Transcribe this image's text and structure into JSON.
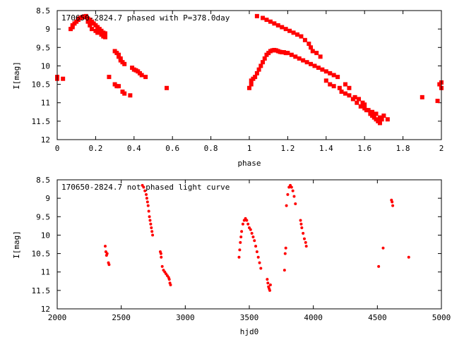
{
  "chart_data": [
    {
      "type": "scatter",
      "title": "170650-2824.7 phased with P=378.0day",
      "xlabel": "phase",
      "ylabel": "I[mag]",
      "xlim": [
        0,
        2
      ],
      "ylim": [
        8.5,
        12
      ],
      "y_inverted": true,
      "grid": false,
      "marker": "filled square",
      "x_ticks": [
        "0",
        "0.2",
        "0.4",
        "0.6",
        "0.8",
        "1",
        "1.2",
        "1.4",
        "1.6",
        "1.8",
        "2"
      ],
      "y_ticks": [
        "8.5",
        "9",
        "9.5",
        "10",
        "10.5",
        "11",
        "11.5",
        "12"
      ],
      "series_color": "#ff0000",
      "points": [
        [
          0.0,
          10.3
        ],
        [
          0.0,
          10.35
        ],
        [
          0.03,
          10.35
        ],
        [
          0.07,
          9.0
        ],
        [
          0.08,
          8.95
        ],
        [
          0.08,
          8.9
        ],
        [
          0.09,
          8.85
        ],
        [
          0.1,
          8.8
        ],
        [
          0.11,
          8.75
        ],
        [
          0.11,
          8.72
        ],
        [
          0.12,
          8.7
        ],
        [
          0.13,
          8.68
        ],
        [
          0.14,
          8.66
        ],
        [
          0.15,
          8.65
        ],
        [
          0.15,
          8.68
        ],
        [
          0.16,
          8.72
        ],
        [
          0.16,
          8.8
        ],
        [
          0.17,
          8.75
        ],
        [
          0.18,
          8.8
        ],
        [
          0.19,
          8.85
        ],
        [
          0.2,
          8.9
        ],
        [
          0.21,
          8.95
        ],
        [
          0.22,
          9.0
        ],
        [
          0.23,
          9.05
        ],
        [
          0.24,
          9.1
        ],
        [
          0.25,
          9.12
        ],
        [
          0.17,
          8.9
        ],
        [
          0.18,
          9.0
        ],
        [
          0.2,
          9.05
        ],
        [
          0.21,
          9.1
        ],
        [
          0.23,
          9.15
        ],
        [
          0.24,
          9.2
        ],
        [
          0.25,
          9.22
        ],
        [
          0.27,
          10.3
        ],
        [
          0.3,
          9.6
        ],
        [
          0.31,
          9.65
        ],
        [
          0.32,
          9.7
        ],
        [
          0.32,
          9.75
        ],
        [
          0.33,
          9.8
        ],
        [
          0.33,
          9.85
        ],
        [
          0.34,
          9.9
        ],
        [
          0.35,
          9.95
        ],
        [
          0.3,
          10.5
        ],
        [
          0.31,
          10.55
        ],
        [
          0.32,
          10.55
        ],
        [
          0.34,
          10.7
        ],
        [
          0.35,
          10.75
        ],
        [
          0.38,
          10.8
        ],
        [
          0.39,
          10.05
        ],
        [
          0.4,
          10.1
        ],
        [
          0.41,
          10.12
        ],
        [
          0.42,
          10.15
        ],
        [
          0.43,
          10.2
        ],
        [
          0.44,
          10.25
        ],
        [
          0.46,
          10.3
        ],
        [
          0.57,
          10.6
        ],
        [
          1.0,
          10.6
        ],
        [
          1.01,
          10.5
        ],
        [
          1.01,
          10.4
        ],
        [
          1.02,
          10.35
        ],
        [
          1.03,
          10.3
        ],
        [
          1.04,
          10.2
        ],
        [
          1.05,
          10.1
        ],
        [
          1.06,
          10.0
        ],
        [
          1.07,
          9.9
        ],
        [
          1.08,
          9.8
        ],
        [
          1.09,
          9.7
        ],
        [
          1.1,
          9.65
        ],
        [
          1.11,
          9.6
        ],
        [
          1.12,
          9.58
        ],
        [
          1.13,
          9.57
        ],
        [
          1.14,
          9.58
        ],
        [
          1.15,
          9.6
        ],
        [
          1.16,
          9.62
        ],
        [
          1.17,
          9.63
        ],
        [
          1.18,
          9.63
        ],
        [
          1.19,
          9.65
        ],
        [
          1.04,
          8.65
        ],
        [
          1.07,
          8.7
        ],
        [
          1.09,
          8.75
        ],
        [
          1.11,
          8.8
        ],
        [
          1.13,
          8.85
        ],
        [
          1.15,
          8.9
        ],
        [
          1.17,
          8.95
        ],
        [
          1.19,
          9.0
        ],
        [
          1.21,
          9.05
        ],
        [
          1.23,
          9.1
        ],
        [
          1.25,
          9.15
        ],
        [
          1.27,
          9.2
        ],
        [
          1.29,
          9.3
        ],
        [
          1.31,
          9.4
        ],
        [
          1.32,
          9.5
        ],
        [
          1.33,
          9.6
        ],
        [
          1.35,
          9.65
        ],
        [
          1.37,
          9.75
        ],
        [
          1.2,
          9.65
        ],
        [
          1.22,
          9.7
        ],
        [
          1.24,
          9.75
        ],
        [
          1.26,
          9.8
        ],
        [
          1.28,
          9.85
        ],
        [
          1.3,
          9.9
        ],
        [
          1.32,
          9.95
        ],
        [
          1.34,
          10.0
        ],
        [
          1.36,
          10.05
        ],
        [
          1.38,
          10.1
        ],
        [
          1.4,
          10.15
        ],
        [
          1.42,
          10.2
        ],
        [
          1.44,
          10.25
        ],
        [
          1.46,
          10.3
        ],
        [
          1.4,
          10.4
        ],
        [
          1.42,
          10.5
        ],
        [
          1.44,
          10.55
        ],
        [
          1.47,
          10.6
        ],
        [
          1.48,
          10.7
        ],
        [
          1.5,
          10.75
        ],
        [
          1.52,
          10.8
        ],
        [
          1.54,
          10.9
        ],
        [
          1.56,
          11.0
        ],
        [
          1.58,
          11.1
        ],
        [
          1.6,
          11.15
        ],
        [
          1.62,
          11.2
        ],
        [
          1.64,
          11.25
        ],
        [
          1.66,
          11.3
        ],
        [
          1.68,
          11.4
        ],
        [
          1.5,
          10.5
        ],
        [
          1.52,
          10.6
        ],
        [
          1.55,
          10.85
        ],
        [
          1.57,
          10.9
        ],
        [
          1.59,
          11.0
        ],
        [
          1.6,
          11.05
        ],
        [
          1.61,
          11.2
        ],
        [
          1.63,
          11.3
        ],
        [
          1.64,
          11.35
        ],
        [
          1.65,
          11.4
        ],
        [
          1.66,
          11.45
        ],
        [
          1.67,
          11.5
        ],
        [
          1.68,
          11.55
        ],
        [
          1.69,
          11.45
        ],
        [
          1.7,
          11.35
        ],
        [
          1.72,
          11.45
        ],
        [
          1.9,
          10.85
        ],
        [
          1.98,
          10.95
        ],
        [
          1.99,
          10.5
        ],
        [
          2.0,
          10.45
        ],
        [
          2.0,
          10.6
        ]
      ]
    },
    {
      "type": "scatter",
      "title": "170650-2824.7 not phased light curve",
      "xlabel": "hjd0",
      "ylabel": "I[mag]",
      "xlim": [
        2000,
        5000
      ],
      "ylim": [
        8.5,
        12
      ],
      "y_inverted": true,
      "grid": false,
      "marker": "small dot",
      "x_ticks": [
        "2000",
        "2500",
        "3000",
        "3500",
        "4000",
        "4500",
        "5000"
      ],
      "y_ticks": [
        "8.5",
        "9",
        "9.5",
        "10",
        "10.5",
        "11",
        "11.5",
        "12"
      ],
      "series_color": "#ff0000",
      "points": [
        [
          2375,
          10.3
        ],
        [
          2380,
          10.45
        ],
        [
          2385,
          10.55
        ],
        [
          2390,
          10.5
        ],
        [
          2400,
          10.75
        ],
        [
          2405,
          10.8
        ],
        [
          2665,
          8.65
        ],
        [
          2675,
          8.7
        ],
        [
          2685,
          8.8
        ],
        [
          2695,
          8.9
        ],
        [
          2700,
          9.0
        ],
        [
          2705,
          9.1
        ],
        [
          2710,
          9.2
        ],
        [
          2715,
          9.35
        ],
        [
          2720,
          9.5
        ],
        [
          2725,
          9.6
        ],
        [
          2730,
          9.7
        ],
        [
          2735,
          9.8
        ],
        [
          2740,
          9.9
        ],
        [
          2745,
          10.0
        ],
        [
          2805,
          10.45
        ],
        [
          2810,
          10.5
        ],
        [
          2812,
          10.6
        ],
        [
          2820,
          10.85
        ],
        [
          2830,
          10.95
        ],
        [
          2840,
          11.0
        ],
        [
          2850,
          11.05
        ],
        [
          2860,
          11.1
        ],
        [
          2870,
          11.15
        ],
        [
          2875,
          11.2
        ],
        [
          2880,
          11.3
        ],
        [
          2885,
          11.35
        ],
        [
          3420,
          10.6
        ],
        [
          3425,
          10.4
        ],
        [
          3430,
          10.2
        ],
        [
          3435,
          10.05
        ],
        [
          3440,
          9.9
        ],
        [
          3450,
          9.7
        ],
        [
          3460,
          9.6
        ],
        [
          3470,
          9.55
        ],
        [
          3480,
          9.6
        ],
        [
          3490,
          9.7
        ],
        [
          3500,
          9.8
        ],
        [
          3510,
          9.85
        ],
        [
          3520,
          9.95
        ],
        [
          3530,
          10.05
        ],
        [
          3540,
          10.15
        ],
        [
          3550,
          10.3
        ],
        [
          3560,
          10.45
        ],
        [
          3570,
          10.6
        ],
        [
          3580,
          10.75
        ],
        [
          3590,
          10.9
        ],
        [
          3640,
          11.2
        ],
        [
          3645,
          11.3
        ],
        [
          3650,
          11.4
        ],
        [
          3655,
          11.45
        ],
        [
          3660,
          11.5
        ],
        [
          3665,
          11.35
        ],
        [
          3775,
          10.95
        ],
        [
          3780,
          10.5
        ],
        [
          3785,
          10.35
        ],
        [
          3790,
          9.2
        ],
        [
          3800,
          8.9
        ],
        [
          3810,
          8.7
        ],
        [
          3820,
          8.65
        ],
        [
          3830,
          8.7
        ],
        [
          3840,
          8.8
        ],
        [
          3850,
          8.95
        ],
        [
          3860,
          9.15
        ],
        [
          3900,
          9.6
        ],
        [
          3905,
          9.7
        ],
        [
          3910,
          9.8
        ],
        [
          3920,
          9.95
        ],
        [
          3930,
          10.1
        ],
        [
          3940,
          10.2
        ],
        [
          3945,
          10.3
        ],
        [
          4510,
          10.85
        ],
        [
          4545,
          10.35
        ],
        [
          4610,
          9.05
        ],
        [
          4615,
          9.1
        ],
        [
          4620,
          9.2
        ],
        [
          4745,
          10.6
        ]
      ]
    }
  ]
}
